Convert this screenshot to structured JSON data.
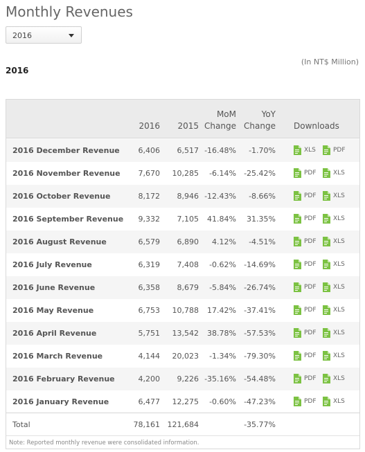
{
  "page": {
    "title": "Monthly Revenues",
    "year_select": "2016",
    "unit_note": "(In NT$ Million)",
    "year_heading": "2016"
  },
  "table": {
    "headers": {
      "col_2016": "2016",
      "col_2015": "2015",
      "mom_line1": "MoM",
      "mom_line2": "Change",
      "yoy_line1": "YoY",
      "yoy_line2": "Change",
      "downloads": "Downloads"
    },
    "rows": [
      {
        "name": "2016 December Revenue",
        "v2016": "6,406",
        "v2015": "6,517",
        "mom": "-16.48%",
        "yoy": "-1.70%",
        "d1": "XLS",
        "d2": "PDF"
      },
      {
        "name": "2016 November Revenue",
        "v2016": "7,670",
        "v2015": "10,285",
        "mom": "-6.14%",
        "yoy": "-25.42%",
        "d1": "PDF",
        "d2": "XLS"
      },
      {
        "name": "2016 October Revenue",
        "v2016": "8,172",
        "v2015": "8,946",
        "mom": "-12.43%",
        "yoy": "-8.66%",
        "d1": "PDF",
        "d2": "XLS"
      },
      {
        "name": "2016 September Revenue",
        "v2016": "9,332",
        "v2015": "7,105",
        "mom": "41.84%",
        "yoy": "31.35%",
        "d1": "PDF",
        "d2": "XLS"
      },
      {
        "name": "2016 August Revenue",
        "v2016": "6,579",
        "v2015": "6,890",
        "mom": "4.12%",
        "yoy": "-4.51%",
        "d1": "PDF",
        "d2": "XLS"
      },
      {
        "name": "2016 July Revenue",
        "v2016": "6,319",
        "v2015": "7,408",
        "mom": "-0.62%",
        "yoy": "-14.69%",
        "d1": "PDF",
        "d2": "XLS"
      },
      {
        "name": "2016 June Revenue",
        "v2016": "6,358",
        "v2015": "8,679",
        "mom": "-5.84%",
        "yoy": "-26.74%",
        "d1": "PDF",
        "d2": "XLS"
      },
      {
        "name": "2016 May Revenue",
        "v2016": "6,753",
        "v2015": "10,788",
        "mom": "17.42%",
        "yoy": "-37.41%",
        "d1": "PDF",
        "d2": "XLS"
      },
      {
        "name": "2016 April Revenue",
        "v2016": "5,751",
        "v2015": "13,542",
        "mom": "38.78%",
        "yoy": "-57.53%",
        "d1": "PDF",
        "d2": "XLS"
      },
      {
        "name": "2016 March Revenue",
        "v2016": "4,144",
        "v2015": "20,023",
        "mom": "-1.34%",
        "yoy": "-79.30%",
        "d1": "PDF",
        "d2": "XLS"
      },
      {
        "name": "2016 February Revenue",
        "v2016": "4,200",
        "v2015": "9,226",
        "mom": "-35.16%",
        "yoy": "-54.48%",
        "d1": "PDF",
        "d2": "XLS"
      },
      {
        "name": "2016 January Revenue",
        "v2016": "6,477",
        "v2015": "12,275",
        "mom": "-0.60%",
        "yoy": "-47.23%",
        "d1": "PDF",
        "d2": "XLS"
      }
    ],
    "total": {
      "label": "Total",
      "v2016": "78,161",
      "v2015": "121,684",
      "mom": "",
      "yoy": "-35.77%"
    },
    "footnote": "Note: Reported monthly revenue were consolidated information."
  },
  "colors": {
    "file_icon": "#7cc243",
    "header_bg": "#ebebeb",
    "alt_row_bg": "#f5f5f5"
  },
  "icons": {
    "download": "file-document-icon",
    "select": "chevron-down-icon"
  }
}
